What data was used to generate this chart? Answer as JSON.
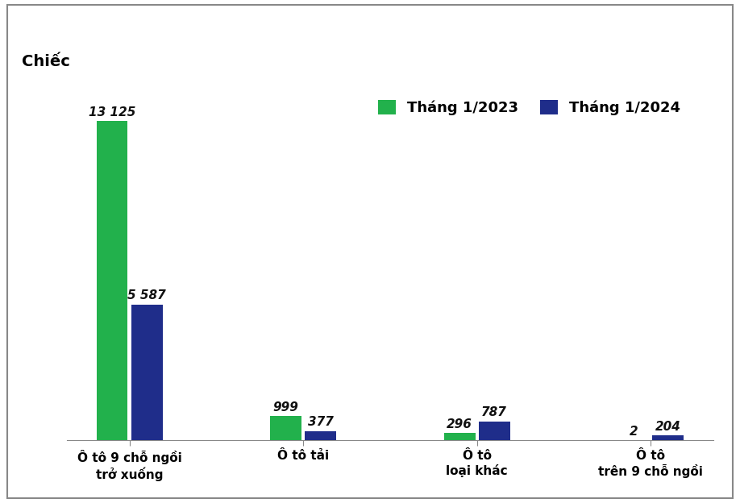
{
  "categories": [
    "Ô tô 9 chỗ ngồi\ntrở xuống",
    "Ô tô tải",
    "Ô tô\nloại khác",
    "Ô tô\ntrên 9 chỗ ngồi"
  ],
  "series": [
    {
      "label": "Tháng 1/2023",
      "values": [
        13125,
        999,
        296,
        2
      ],
      "color": "#22b14c"
    },
    {
      "label": "Tháng 1/2024",
      "values": [
        5587,
        377,
        787,
        204
      ],
      "color": "#1f2d8a"
    }
  ],
  "ylabel": "Chiếc",
  "ylim": [
    0,
    15000
  ],
  "bar_width": 0.18,
  "value_labels": {
    "13125": "13 125",
    "5587": "5 587",
    "999": "999",
    "377": "377",
    "296": "296",
    "787": "787",
    "2": "2",
    "204": "204"
  },
  "background_color": "#ffffff",
  "ylabel_fontsize": 14,
  "tick_fontsize": 11,
  "legend_fontsize": 13,
  "value_fontsize": 11
}
